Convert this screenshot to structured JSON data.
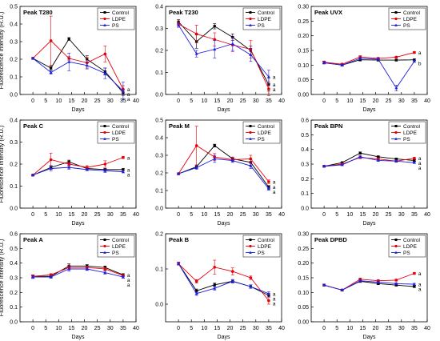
{
  "colors": {
    "Control": "#000000",
    "LDPE": "#e8000b",
    "PS": "#1f1fe0"
  },
  "chart_data": [
    {
      "type": "line",
      "title": "Peak T280",
      "xlabel": "Days",
      "ylabel": "Fluorescence intensity (R.U.)",
      "xlim": [
        -5,
        40
      ],
      "xticks": [
        0,
        5,
        10,
        15,
        20,
        25,
        30,
        35,
        40
      ],
      "ylim": [
        0,
        0.5
      ],
      "yticks": [
        0.0,
        0.1,
        0.2,
        0.3,
        0.4,
        0.5
      ],
      "legend": "top-right",
      "x": [
        0,
        7,
        14,
        21,
        28,
        35
      ],
      "series": [
        {
          "name": "Control",
          "values": [
            0.205,
            0.15,
            0.315,
            0.2,
            0.13,
            0.01
          ],
          "errors": [
            0.005,
            0.01,
            0.008,
            0.02,
            0.02,
            0.015
          ]
        },
        {
          "name": "LDPE",
          "values": [
            0.205,
            0.305,
            0.205,
            0.18,
            0.23,
            0.03
          ],
          "errors": [
            0.005,
            0.14,
            0.01,
            0.03,
            0.045,
            0.02
          ]
        },
        {
          "name": "PS",
          "values": [
            0.205,
            0.125,
            0.185,
            0.165,
            0.12,
            0.02
          ],
          "errors": [
            0.005,
            0.01,
            0.05,
            0.02,
            0.03,
            0.05
          ]
        }
      ],
      "annotations": [
        "a",
        "a",
        "a"
      ]
    },
    {
      "type": "line",
      "title": "Peak T230",
      "xlabel": "Days",
      "ylabel": "",
      "xlim": [
        -5,
        40
      ],
      "xticks": [
        0,
        5,
        10,
        15,
        20,
        25,
        30,
        35,
        40
      ],
      "ylim": [
        0,
        0.4
      ],
      "yticks": [
        0.0,
        0.1,
        0.2,
        0.3,
        0.4
      ],
      "legend": "top-right",
      "x": [
        0,
        7,
        14,
        21,
        28,
        35
      ],
      "series": [
        {
          "name": "Control",
          "values": [
            0.33,
            0.24,
            0.31,
            0.26,
            0.2,
            0.045
          ],
          "errors": [
            0.01,
            0.03,
            0.012,
            0.015,
            0.02,
            0.03
          ]
        },
        {
          "name": "LDPE",
          "values": [
            0.32,
            0.275,
            0.25,
            0.225,
            0.205,
            0.025
          ],
          "errors": [
            0.01,
            0.04,
            0.03,
            0.03,
            0.04,
            0.03
          ]
        },
        {
          "name": "PS",
          "values": [
            0.315,
            0.185,
            0.205,
            0.23,
            0.18,
            0.08
          ],
          "errors": [
            0.01,
            0.015,
            0.04,
            0.03,
            0.03,
            0.03
          ]
        }
      ],
      "annotations": [
        "a",
        "a",
        "a"
      ]
    },
    {
      "type": "line",
      "title": "Peak UVX",
      "xlabel": "Days",
      "ylabel": "",
      "xlim": [
        -5,
        40
      ],
      "xticks": [
        0,
        5,
        10,
        15,
        20,
        25,
        30,
        35,
        40
      ],
      "ylim": [
        0,
        0.3
      ],
      "yticks": [
        0.0,
        0.05,
        0.1,
        0.15,
        0.2,
        0.25,
        0.3
      ],
      "legend": "top-right",
      "x": [
        0,
        7,
        14,
        21,
        28,
        35
      ],
      "series": [
        {
          "name": "Control",
          "values": [
            0.108,
            0.1,
            0.118,
            0.117,
            0.117,
            0.118
          ],
          "errors": [
            0.004,
            0.003,
            0.004,
            0.003,
            0.003,
            0.003
          ]
        },
        {
          "name": "LDPE",
          "values": [
            0.11,
            0.103,
            0.128,
            0.123,
            0.127,
            0.143
          ],
          "errors": [
            0.004,
            0.003,
            0.004,
            0.003,
            0.003,
            0.003
          ]
        },
        {
          "name": "PS",
          "values": [
            0.108,
            0.1,
            0.123,
            0.12,
            0.022,
            0.113
          ],
          "errors": [
            0.004,
            0.003,
            0.004,
            0.003,
            0.01,
            0.003
          ]
        }
      ],
      "annotations": [
        "a",
        "b"
      ]
    },
    {
      "type": "line",
      "title": "Peak C",
      "xlabel": "Days",
      "ylabel": "Fluorescence intensity (R.U.)",
      "xlim": [
        -5,
        40
      ],
      "xticks": [
        0,
        5,
        10,
        15,
        20,
        25,
        30,
        35,
        40
      ],
      "ylim": [
        0,
        0.4
      ],
      "yticks": [
        0.0,
        0.1,
        0.2,
        0.3,
        0.4
      ],
      "legend": "top-right",
      "x": [
        0,
        7,
        14,
        21,
        28,
        35
      ],
      "series": [
        {
          "name": "Control",
          "values": [
            0.15,
            0.185,
            0.21,
            0.18,
            0.175,
            0.175
          ],
          "errors": [
            0.003,
            0.008,
            0.008,
            0.005,
            0.005,
            0.005
          ]
        },
        {
          "name": "LDPE",
          "values": [
            0.15,
            0.22,
            0.2,
            0.185,
            0.2,
            0.23
          ],
          "errors": [
            0.003,
            0.03,
            0.01,
            0.008,
            0.015,
            0.005
          ]
        },
        {
          "name": "PS",
          "values": [
            0.15,
            0.18,
            0.185,
            0.175,
            0.17,
            0.165
          ],
          "errors": [
            0.003,
            0.01,
            0.008,
            0.005,
            0.008,
            0.005
          ]
        }
      ],
      "annotations": [
        "a",
        "a",
        "a"
      ]
    },
    {
      "type": "line",
      "title": "Peak M",
      "xlabel": "Days",
      "ylabel": "",
      "xlim": [
        -5,
        40
      ],
      "xticks": [
        0,
        5,
        10,
        15,
        20,
        25,
        30,
        35,
        40
      ],
      "ylim": [
        0,
        0.5
      ],
      "yticks": [
        0.0,
        0.1,
        0.2,
        0.3,
        0.4,
        0.5
      ],
      "legend": "top-right",
      "x": [
        0,
        7,
        14,
        21,
        28,
        35
      ],
      "series": [
        {
          "name": "Control",
          "values": [
            0.195,
            0.235,
            0.355,
            0.28,
            0.26,
            0.12
          ],
          "errors": [
            0.005,
            0.01,
            0.008,
            0.01,
            0.015,
            0.008
          ]
        },
        {
          "name": "LDPE",
          "values": [
            0.195,
            0.355,
            0.29,
            0.275,
            0.28,
            0.15
          ],
          "errors": [
            0.005,
            0.11,
            0.02,
            0.015,
            0.02,
            0.01
          ]
        },
        {
          "name": "PS",
          "values": [
            0.195,
            0.23,
            0.28,
            0.27,
            0.24,
            0.11
          ],
          "errors": [
            0.005,
            0.01,
            0.02,
            0.01,
            0.015,
            0.008
          ]
        }
      ],
      "annotations": [
        "a",
        "a",
        "a"
      ]
    },
    {
      "type": "line",
      "title": "Peak BPN",
      "xlabel": "Days",
      "ylabel": "",
      "xlim": [
        -5,
        40
      ],
      "xticks": [
        0,
        5,
        10,
        15,
        20,
        25,
        30,
        35,
        40
      ],
      "ylim": [
        0,
        0.6
      ],
      "yticks": [
        0.0,
        0.1,
        0.2,
        0.3,
        0.4,
        0.5,
        0.6
      ],
      "legend": "top-right",
      "x": [
        0,
        7,
        14,
        21,
        28,
        35
      ],
      "series": [
        {
          "name": "Control",
          "values": [
            0.285,
            0.31,
            0.375,
            0.35,
            0.335,
            0.325
          ],
          "errors": [
            0.005,
            0.005,
            0.008,
            0.005,
            0.005,
            0.005
          ]
        },
        {
          "name": "LDPE",
          "values": [
            0.285,
            0.3,
            0.345,
            0.335,
            0.32,
            0.34
          ],
          "errors": [
            0.005,
            0.005,
            0.008,
            0.005,
            0.005,
            0.005
          ]
        },
        {
          "name": "PS",
          "values": [
            0.285,
            0.295,
            0.35,
            0.325,
            0.32,
            0.31
          ],
          "errors": [
            0.005,
            0.005,
            0.008,
            0.005,
            0.005,
            0.005
          ]
        }
      ],
      "annotations": [
        "a",
        "a",
        "a"
      ]
    },
    {
      "type": "line",
      "title": "Peak A",
      "xlabel": "Days",
      "ylabel": "Fluorescence intensity (R.U.)",
      "xlim": [
        -5,
        40
      ],
      "xticks": [
        0,
        5,
        10,
        15,
        20,
        25,
        30,
        35,
        40
      ],
      "ylim": [
        0,
        0.6
      ],
      "yticks": [
        0.0,
        0.1,
        0.2,
        0.3,
        0.4,
        0.5,
        0.6
      ],
      "legend": "top-right",
      "x": [
        0,
        7,
        14,
        21,
        28,
        35
      ],
      "series": [
        {
          "name": "Control",
          "values": [
            0.31,
            0.31,
            0.38,
            0.38,
            0.37,
            0.32
          ],
          "errors": [
            0.01,
            0.008,
            0.015,
            0.01,
            0.01,
            0.008
          ]
        },
        {
          "name": "LDPE",
          "values": [
            0.31,
            0.32,
            0.37,
            0.37,
            0.36,
            0.315
          ],
          "errors": [
            0.01,
            0.008,
            0.015,
            0.01,
            0.01,
            0.008
          ]
        },
        {
          "name": "PS",
          "values": [
            0.305,
            0.305,
            0.36,
            0.36,
            0.335,
            0.305
          ],
          "errors": [
            0.01,
            0.008,
            0.015,
            0.01,
            0.01,
            0.008
          ]
        }
      ],
      "annotations": [
        "a",
        "a",
        "a"
      ]
    },
    {
      "type": "line",
      "title": "Peak B",
      "xlabel": "Days",
      "ylabel": "",
      "xlim": [
        -5,
        40
      ],
      "xticks": [
        0,
        5,
        10,
        15,
        20,
        25,
        30,
        35,
        40
      ],
      "ylim": [
        -0.05,
        0.2
      ],
      "yticks": [
        0.0,
        0.1,
        0.2
      ],
      "legend": "top-right",
      "x": [
        0,
        7,
        14,
        21,
        28,
        35
      ],
      "series": [
        {
          "name": "Control",
          "values": [
            0.115,
            0.038,
            0.055,
            0.065,
            0.05,
            0.025
          ],
          "errors": [
            0.004,
            0.005,
            0.005,
            0.005,
            0.005,
            0.005
          ]
        },
        {
          "name": "LDPE",
          "values": [
            0.115,
            0.065,
            0.105,
            0.093,
            0.075,
            0.01
          ],
          "errors": [
            0.004,
            0.005,
            0.02,
            0.01,
            0.005,
            0.01
          ]
        },
        {
          "name": "PS",
          "values": [
            0.115,
            0.03,
            0.045,
            0.065,
            0.05,
            0.03
          ],
          "errors": [
            0.004,
            0.005,
            0.005,
            0.005,
            0.005,
            0.005
          ]
        }
      ],
      "annotations": [
        "a",
        "a",
        "a"
      ]
    },
    {
      "type": "line",
      "title": "Peak DPBD",
      "xlabel": "Days",
      "ylabel": "",
      "xlim": [
        -5,
        40
      ],
      "xticks": [
        0,
        5,
        10,
        15,
        20,
        25,
        30,
        35,
        40
      ],
      "ylim": [
        0,
        0.3
      ],
      "yticks": [
        0.0,
        0.05,
        0.1,
        0.15,
        0.2,
        0.25,
        0.3
      ],
      "legend": "top-right",
      "x": [
        0,
        7,
        14,
        21,
        28,
        35
      ],
      "series": [
        {
          "name": "Control",
          "values": [
            0.125,
            0.108,
            0.138,
            0.13,
            0.125,
            0.12
          ],
          "errors": [
            0.003,
            0.003,
            0.004,
            0.003,
            0.003,
            0.003
          ]
        },
        {
          "name": "LDPE",
          "values": [
            0.125,
            0.108,
            0.145,
            0.14,
            0.142,
            0.165
          ],
          "errors": [
            0.003,
            0.003,
            0.004,
            0.003,
            0.003,
            0.003
          ]
        },
        {
          "name": "PS",
          "values": [
            0.125,
            0.108,
            0.14,
            0.135,
            0.13,
            0.128
          ],
          "errors": [
            0.003,
            0.003,
            0.004,
            0.003,
            0.003,
            0.003
          ]
        }
      ],
      "annotations": [
        "a",
        "a",
        "a"
      ]
    }
  ]
}
